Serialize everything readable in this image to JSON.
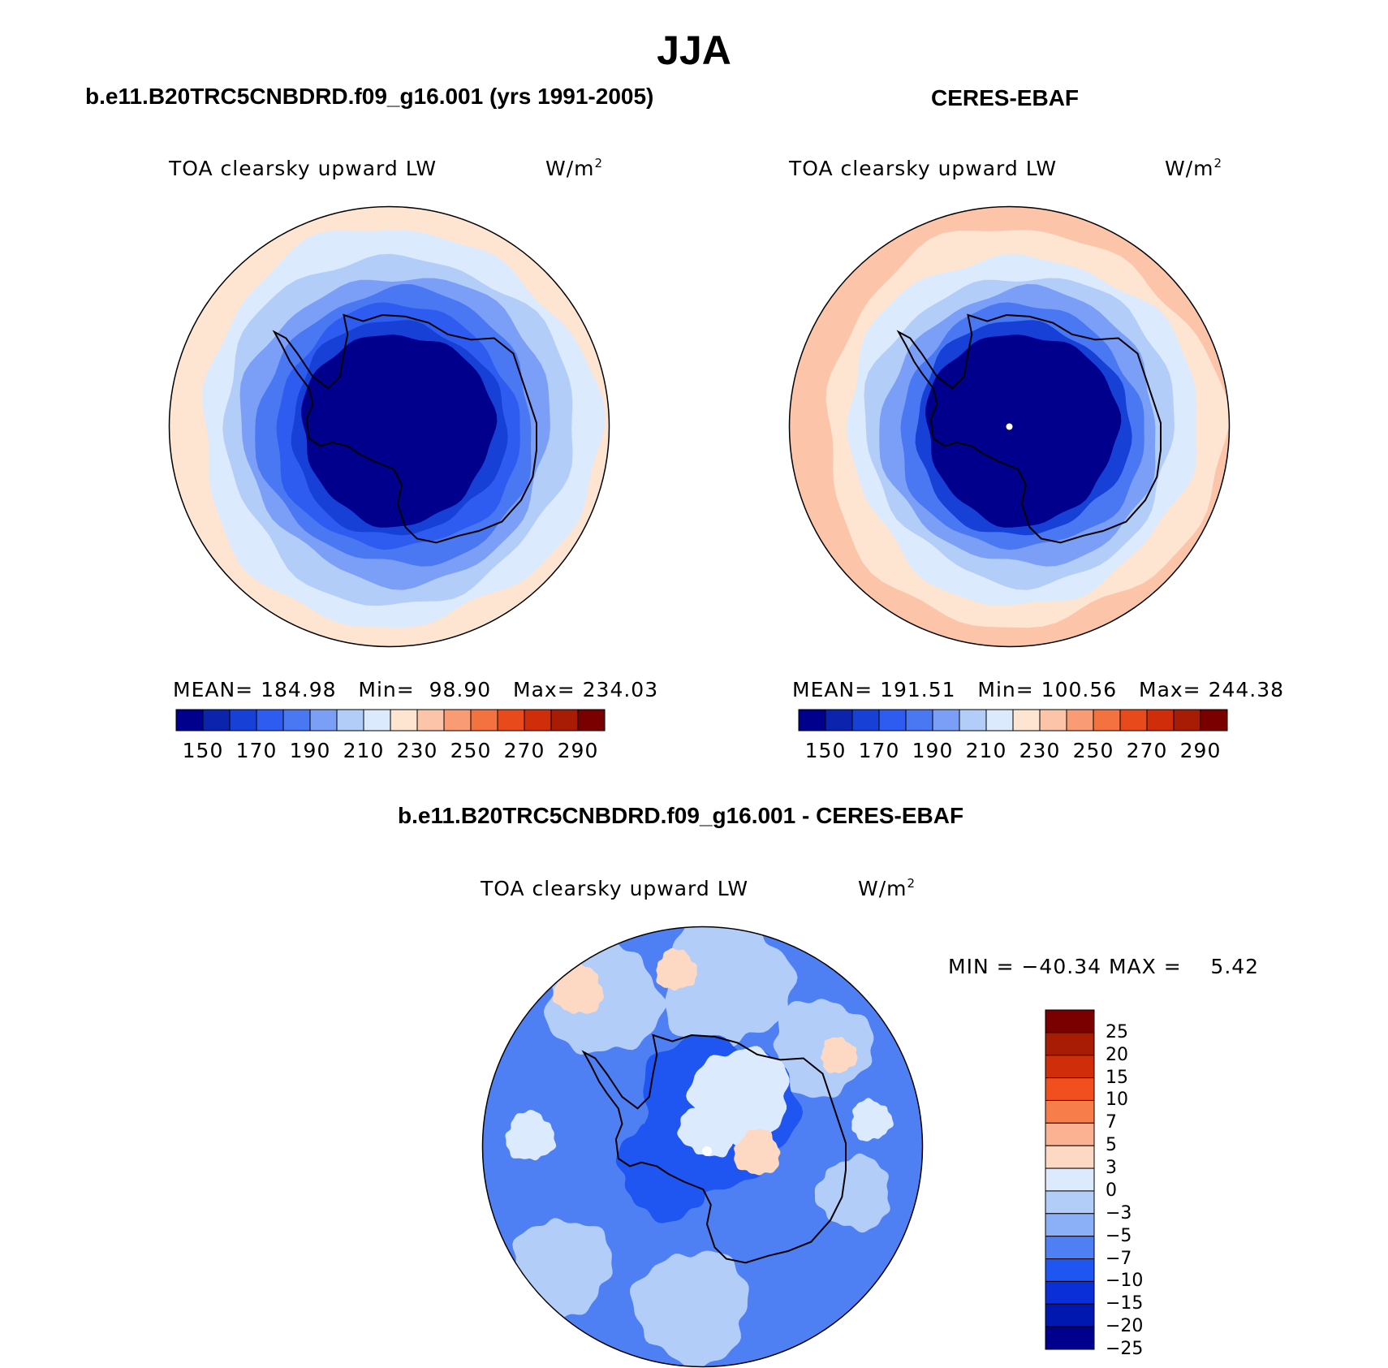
{
  "figure_title": "JJA",
  "panels": [
    {
      "id": "model",
      "case_title": "b.e11.B20TRC5CNBDRD.f09_g16.001 (yrs 1991-2005)",
      "variable": "TOA clearsky upward LW",
      "units": "W/m",
      "units_superscript": "2",
      "stats": {
        "mean_label": "MEAN=",
        "mean": "184.98",
        "min_label": "Min=",
        "min": "98.90",
        "max_label": "Max=",
        "max": "234.03"
      },
      "map_icon": "antarctic-polar-stereographic-map"
    },
    {
      "id": "obs",
      "case_title": "CERES-EBAF",
      "variable": "TOA clearsky upward LW",
      "units": "W/m",
      "units_superscript": "2",
      "stats": {
        "mean_label": "MEAN=",
        "mean": "191.51",
        "min_label": "Min=",
        "min": "100.56",
        "max_label": "Max=",
        "max": "244.38"
      },
      "map_icon": "antarctic-polar-stereographic-map"
    },
    {
      "id": "diff",
      "case_title": "b.e11.B20TRC5CNBDRD.f09_g16.001 - CERES-EBAF",
      "variable": "TOA clearsky upward LW",
      "units": "W/m",
      "units_superscript": "2",
      "minmax": "MIN = −40.34 MAX =    5.42",
      "map_icon": "antarctic-polar-stereographic-map"
    }
  ],
  "colorbar_abs": {
    "colors": [
      "#00008c",
      "#0c23ad",
      "#1740d6",
      "#2e5cf0",
      "#4a78f2",
      "#7b9ff6",
      "#b3cdf9",
      "#dbeafc",
      "#fde5d2",
      "#fcc4a8",
      "#f99b74",
      "#f4723f",
      "#e84a1c",
      "#d02d0b",
      "#a81c06",
      "#7a0000"
    ],
    "tick_labels": [
      "150",
      "170",
      "190",
      "210",
      "230",
      "250",
      "270",
      "290"
    ]
  },
  "colorbar_diff": {
    "colors": [
      "#7a0000",
      "#a81c06",
      "#d02d0b",
      "#f24f1f",
      "#f77d4a",
      "#fab293",
      "#fdd9c4",
      "#dbeafc",
      "#b3cdf9",
      "#8cb0f8",
      "#4f80f3",
      "#1f55f0",
      "#0a2fd8",
      "#0018b0",
      "#00008c"
    ],
    "tick_labels": [
      "25",
      "20",
      "15",
      "10",
      "7",
      "5",
      "3",
      "0",
      "−3",
      "−5",
      "−7",
      "−10",
      "−15",
      "−20",
      "−25"
    ]
  },
  "map_colors": {
    "model_rings": [
      "#fde5d2",
      "#dbeafc",
      "#b3cdf9",
      "#7b9ff6",
      "#4a78f2",
      "#2e5cf0",
      "#1740d6",
      "#00008c"
    ],
    "obs_rings": [
      "#fcc4a8",
      "#fde5d2",
      "#dbeafc",
      "#b3cdf9",
      "#7b9ff6",
      "#4a78f2",
      "#1740d6",
      "#00008c"
    ],
    "diff_base": "#4f80f3",
    "diff_patch_light": "#b3cdf9",
    "diff_patch_pale": "#dbeafc",
    "diff_patch_warm": "#fdd9c4",
    "diff_patch_dark": "#1f55f0",
    "coast": "#000000"
  }
}
